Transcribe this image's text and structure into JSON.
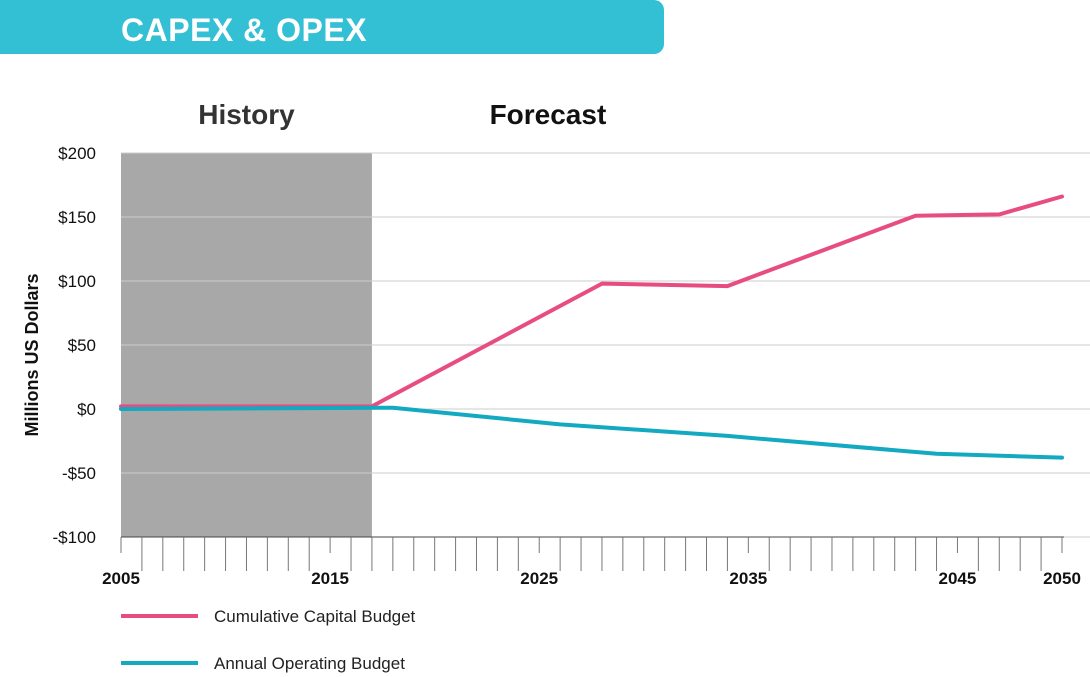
{
  "header": {
    "title": "CAPEX & OPEX"
  },
  "colors": {
    "banner": "#33bfd4",
    "history_shade": "#a8a8a8",
    "grid": "#cccccc",
    "capital": "#e84d82",
    "operating": "#12a9c1",
    "history_text": "#333333",
    "forecast_text": "#111111"
  },
  "chart_data": {
    "type": "line",
    "title": "",
    "xlabel": "",
    "ylabel": "Millions US Dollars",
    "xlim": [
      2005,
      2050
    ],
    "ylim": [
      -100,
      200
    ],
    "y_ticks": [
      200,
      150,
      100,
      50,
      0,
      -50,
      -100
    ],
    "y_tick_labels": [
      "$200",
      "$150",
      "$100",
      "$50",
      "$0",
      "-$50",
      "-$100"
    ],
    "x_tick_labels": [
      {
        "x": 2005,
        "label": "2005"
      },
      {
        "x": 2015,
        "label": "2015"
      },
      {
        "x": 2025,
        "label": "2025"
      },
      {
        "x": 2035,
        "label": "2035"
      },
      {
        "x": 2045,
        "label": "2045"
      },
      {
        "x": 2050,
        "label": "2050"
      }
    ],
    "x_minor_ticks_start": 2005,
    "x_minor_ticks_end": 2050,
    "grid": true,
    "regions": [
      {
        "label": "History",
        "from": 2005,
        "to": 2017,
        "shaded": true
      },
      {
        "label": "Forecast",
        "from": 2017,
        "to": 2050,
        "shaded": false
      }
    ],
    "legend_position": "bottom-left",
    "series": [
      {
        "name": "Cumulative Capital Budget",
        "x": [
          2005,
          2017,
          2028,
          2034,
          2043,
          2047,
          2050
        ],
        "values": [
          2,
          2,
          98,
          96,
          151,
          152,
          166
        ]
      },
      {
        "name": "Annual Operating Budget",
        "x": [
          2005,
          2018,
          2026,
          2034,
          2044,
          2050
        ],
        "values": [
          0,
          1,
          -12,
          -21,
          -35,
          -38
        ]
      }
    ]
  }
}
